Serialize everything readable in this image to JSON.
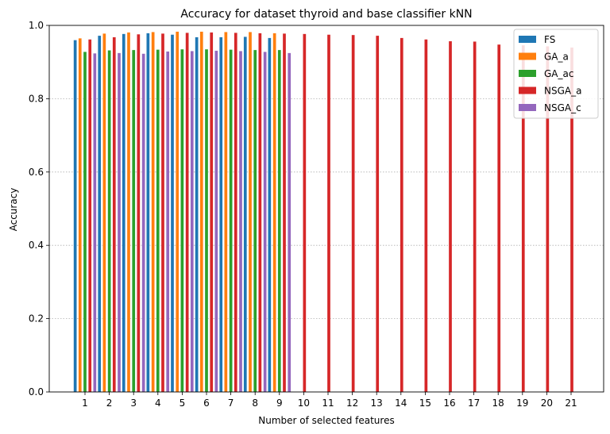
{
  "chart_data": {
    "type": "bar",
    "title": "Accuracy for dataset thyroid and base classifier kNN",
    "xlabel": "Number of selected features",
    "ylabel": "Accuracy",
    "ylim": [
      0,
      1
    ],
    "yticks": [
      "0.0",
      "0.2",
      "0.4",
      "0.6",
      "0.8",
      "1.0"
    ],
    "grid": "y-dotted",
    "legend_position": "top-right",
    "categories": [
      "1",
      "2",
      "3",
      "4",
      "5",
      "6",
      "7",
      "8",
      "9",
      "10",
      "11",
      "12",
      "13",
      "14",
      "15",
      "16",
      "17",
      "18",
      "19",
      "20",
      "21"
    ],
    "series": [
      {
        "name": "FS",
        "color": "#1f77b4",
        "values": [
          0.96,
          0.972,
          0.977,
          0.979,
          0.975,
          0.968,
          0.968,
          0.969,
          0.966,
          null,
          null,
          null,
          null,
          null,
          null,
          null,
          null,
          null,
          null,
          null,
          null
        ]
      },
      {
        "name": "GA_a",
        "color": "#ff7f0e",
        "values": [
          0.965,
          0.978,
          0.981,
          0.982,
          0.983,
          0.983,
          0.982,
          0.982,
          0.979,
          null,
          null,
          null,
          null,
          null,
          null,
          null,
          null,
          null,
          null,
          null,
          null
        ]
      },
      {
        "name": "GA_ac",
        "color": "#2ca02c",
        "values": [
          0.928,
          0.932,
          0.933,
          0.934,
          0.935,
          0.935,
          0.934,
          0.933,
          0.933,
          null,
          null,
          null,
          null,
          null,
          null,
          null,
          null,
          null,
          null,
          null,
          null
        ]
      },
      {
        "name": "NSGA_a",
        "color": "#d62728",
        "values": [
          0.962,
          0.968,
          0.976,
          0.978,
          0.98,
          0.981,
          0.98,
          0.979,
          0.978,
          0.977,
          0.975,
          0.974,
          0.972,
          0.966,
          0.962,
          0.957,
          0.956,
          0.948,
          0.946,
          0.943,
          0.94
        ]
      },
      {
        "name": "NSGA_c",
        "color": "#9467bd",
        "values": [
          0.924,
          0.925,
          0.923,
          0.929,
          0.93,
          0.931,
          0.93,
          0.928,
          0.925,
          null,
          null,
          null,
          null,
          null,
          null,
          null,
          null,
          null,
          null,
          null,
          null
        ]
      }
    ]
  }
}
